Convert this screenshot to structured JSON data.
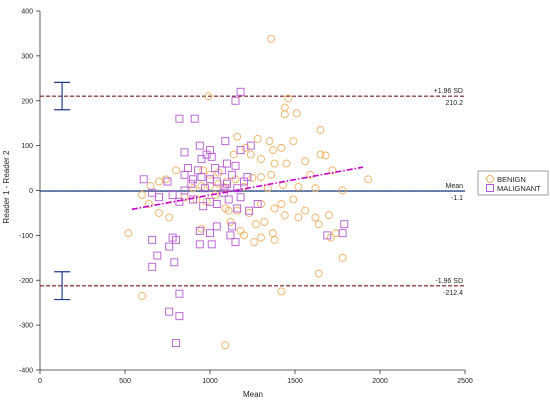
{
  "chart_data": {
    "type": "scatter",
    "title": "",
    "xlabel": "Mean",
    "ylabel": "Reader 1 - Reader 2",
    "xlim": [
      0,
      2500
    ],
    "ylim": [
      -400,
      400
    ],
    "xticks": [
      0,
      500,
      1000,
      1500,
      2000,
      2500
    ],
    "yticks": [
      -400,
      -300,
      -200,
      -100,
      0,
      100,
      200,
      300,
      400
    ],
    "grid": false,
    "legend_position": "right",
    "reference_lines": [
      {
        "name": "+1.96 SD",
        "value": 210.2,
        "value_label": "210.2",
        "style": "dashed",
        "color": "#7a1f1f"
      },
      {
        "name": "Mean",
        "value": -1.1,
        "value_label": "-1.1",
        "style": "solid",
        "color": "#1f3a93"
      },
      {
        "name": "-1.96 SD",
        "value": -212.4,
        "value_label": "-212.4",
        "style": "dashed",
        "color": "#7a1f1f"
      }
    ],
    "zero_line": {
      "value": 0,
      "color": "#9acd32",
      "style": "dotted"
    },
    "confidence_intervals": [
      {
        "x": 130,
        "low": 180,
        "high": 241
      },
      {
        "x": 130,
        "low": -243,
        "high": -181
      }
    ],
    "trend_line": {
      "x": [
        540,
        1900
      ],
      "y": [
        -42,
        52
      ],
      "color": "#cc00cc",
      "style": "dashdot"
    },
    "series": [
      {
        "name": "BENIGN",
        "marker": "circle",
        "color": "#f0b060",
        "points": [
          [
            1360,
            338
          ],
          [
            990,
            210
          ],
          [
            1460,
            205
          ],
          [
            1440,
            185
          ],
          [
            1440,
            170
          ],
          [
            1510,
            172
          ],
          [
            1160,
            120
          ],
          [
            1280,
            115
          ],
          [
            1210,
            95
          ],
          [
            1490,
            110
          ],
          [
            1350,
            110
          ],
          [
            1650,
            135
          ],
          [
            1370,
            90
          ],
          [
            1420,
            95
          ],
          [
            1140,
            80
          ],
          [
            1240,
            80
          ],
          [
            1300,
            70
          ],
          [
            1380,
            60
          ],
          [
            1450,
            60
          ],
          [
            1560,
            65
          ],
          [
            1650,
            80
          ],
          [
            1680,
            78
          ],
          [
            1720,
            45
          ],
          [
            1590,
            35
          ],
          [
            1360,
            35
          ],
          [
            1300,
            30
          ],
          [
            1250,
            28
          ],
          [
            1150,
            25
          ],
          [
            1100,
            20
          ],
          [
            1050,
            15
          ],
          [
            1000,
            10
          ],
          [
            950,
            10
          ],
          [
            900,
            5
          ],
          [
            1080,
            5
          ],
          [
            1200,
            8
          ],
          [
            1340,
            5
          ],
          [
            1430,
            12
          ],
          [
            1520,
            8
          ],
          [
            1620,
            5
          ],
          [
            1780,
            0
          ],
          [
            1930,
            25
          ],
          [
            1000,
            35
          ],
          [
            1050,
            40
          ],
          [
            960,
            45
          ],
          [
            800,
            45
          ],
          [
            740,
            25
          ],
          [
            700,
            20
          ],
          [
            650,
            10
          ],
          [
            600,
            -10
          ],
          [
            640,
            -30
          ],
          [
            700,
            -50
          ],
          [
            760,
            -60
          ],
          [
            850,
            -15
          ],
          [
            920,
            -20
          ],
          [
            980,
            -25
          ],
          [
            1030,
            -10
          ],
          [
            1090,
            -40
          ],
          [
            1160,
            -45
          ],
          [
            1230,
            -50
          ],
          [
            1300,
            -30
          ],
          [
            1380,
            -40
          ],
          [
            1440,
            -55
          ],
          [
            1520,
            -60
          ],
          [
            1560,
            -45
          ],
          [
            1620,
            -60
          ],
          [
            1700,
            -55
          ],
          [
            1640,
            -75
          ],
          [
            1710,
            -105
          ],
          [
            1740,
            -95
          ],
          [
            1780,
            -150
          ],
          [
            1640,
            -185
          ],
          [
            1420,
            -225
          ],
          [
            1490,
            -20
          ],
          [
            1420,
            -30
          ],
          [
            1370,
            -95
          ],
          [
            1380,
            -110
          ],
          [
            1300,
            -105
          ],
          [
            1320,
            -70
          ],
          [
            1270,
            -75
          ],
          [
            1200,
            -100
          ],
          [
            1260,
            -115
          ],
          [
            1120,
            -70
          ],
          [
            1110,
            -45
          ],
          [
            1090,
            -345
          ],
          [
            520,
            -95
          ],
          [
            600,
            -235
          ],
          [
            1180,
            -90
          ],
          [
            950,
            -85
          ]
        ]
      },
      {
        "name": "MALIGNANT",
        "marker": "square",
        "color": "#b45ad2",
        "points": [
          [
            1180,
            220
          ],
          [
            1150,
            200
          ],
          [
            820,
            160
          ],
          [
            910,
            160
          ],
          [
            1090,
            110
          ],
          [
            1240,
            100
          ],
          [
            940,
            100
          ],
          [
            1000,
            90
          ],
          [
            1180,
            90
          ],
          [
            850,
            85
          ],
          [
            980,
            80
          ],
          [
            950,
            70
          ],
          [
            1010,
            75
          ],
          [
            1100,
            60
          ],
          [
            1150,
            55
          ],
          [
            1030,
            50
          ],
          [
            870,
            50
          ],
          [
            930,
            45
          ],
          [
            1070,
            45
          ],
          [
            1130,
            35
          ],
          [
            1220,
            30
          ],
          [
            1000,
            25
          ],
          [
            900,
            25
          ],
          [
            750,
            20
          ],
          [
            610,
            25
          ],
          [
            850,
            35
          ],
          [
            950,
            30
          ],
          [
            1040,
            20
          ],
          [
            1100,
            15
          ],
          [
            1200,
            20
          ],
          [
            1160,
            5
          ],
          [
            1090,
            5
          ],
          [
            970,
            5
          ],
          [
            890,
            15
          ],
          [
            850,
            0
          ],
          [
            780,
            -10
          ],
          [
            700,
            -15
          ],
          [
            660,
            -5
          ],
          [
            820,
            -25
          ],
          [
            900,
            -20
          ],
          [
            960,
            -35
          ],
          [
            1000,
            -25
          ],
          [
            1040,
            -30
          ],
          [
            1110,
            -20
          ],
          [
            1160,
            -40
          ],
          [
            1230,
            -45
          ],
          [
            1280,
            -30
          ],
          [
            1180,
            -15
          ],
          [
            1080,
            -5
          ],
          [
            940,
            -90
          ],
          [
            1000,
            -95
          ],
          [
            1040,
            -80
          ],
          [
            1130,
            -80
          ],
          [
            1150,
            -115
          ],
          [
            1010,
            -120
          ],
          [
            940,
            -120
          ],
          [
            1120,
            -100
          ],
          [
            1790,
            -75
          ],
          [
            1780,
            -95
          ],
          [
            1690,
            -100
          ],
          [
            780,
            -105
          ],
          [
            760,
            -125
          ],
          [
            690,
            -145
          ],
          [
            660,
            -110
          ],
          [
            800,
            -110
          ],
          [
            790,
            -160
          ],
          [
            660,
            -170
          ],
          [
            820,
            -230
          ],
          [
            760,
            -270
          ],
          [
            820,
            -280
          ],
          [
            800,
            -340
          ]
        ]
      }
    ]
  }
}
